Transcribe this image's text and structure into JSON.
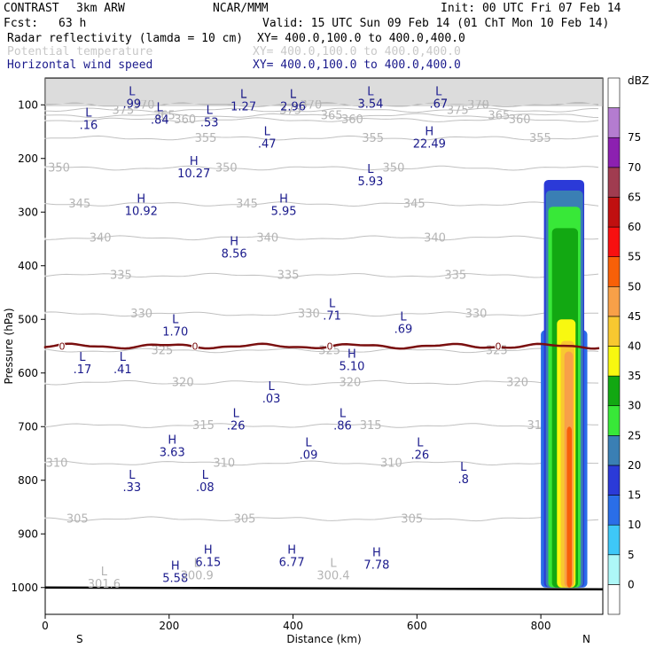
{
  "header": {
    "model": "CONTRAST",
    "model_res": "3km ARW",
    "org": "NCAR/MMM",
    "init": "Init: 00 UTC Fri 07 Feb 14",
    "fcst_label": "Fcst:",
    "fcst_value": "63 h",
    "valid": "Valid: 15 UTC Sun 09 Feb 14 (01 ChT Mon 10 Feb 14)",
    "fields": [
      {
        "name": "Radar reflectivity (lamda = 10 cm)",
        "xy": "XY= 400.0,100.0 to 400.0,400.0",
        "color": "#000000"
      },
      {
        "name": "Potential temperature",
        "xy": "XY= 400.0,100.0 to 400.0,400.0",
        "color": "#c8c8c8"
      },
      {
        "name": "Horizontal wind speed",
        "xy": "XY= 400.0,100.0 to 400.0,400.0",
        "color": "#1a1a8c"
      }
    ]
  },
  "chart_data": {
    "type": "heatmap",
    "xlabel": "Distance (km)",
    "ylabel": "Pressure (hPa)",
    "xlim": [
      0,
      900
    ],
    "ylim": [
      1050,
      50
    ],
    "x_ticks": [
      0,
      200,
      400,
      600,
      800
    ],
    "y_ticks": [
      100,
      200,
      300,
      400,
      500,
      600,
      700,
      800,
      900,
      1000
    ],
    "x_end_labels": {
      "left": "S",
      "right": "N"
    },
    "colorbar": {
      "unit": "dBZ",
      "levels": [
        0,
        5,
        10,
        15,
        20,
        25,
        30,
        35,
        40,
        45,
        50,
        55,
        60,
        65,
        70,
        75
      ],
      "colors": [
        "#ffffff",
        "#aef8f8",
        "#3ec8f8",
        "#2a6ee8",
        "#2b3ad8",
        "#3a7fb4",
        "#38e838",
        "#12a812",
        "#f8f810",
        "#f8c830",
        "#f8a048",
        "#f86008",
        "#f81010",
        "#c01010",
        "#a03c50",
        "#8c20b0",
        "#b47cd0",
        "#ffffff"
      ]
    },
    "theta_contours": [
      {
        "label": "375",
        "p": 110
      },
      {
        "label": "370",
        "p": 100
      },
      {
        "label": "365",
        "p": 120
      },
      {
        "label": "360",
        "p": 128
      },
      {
        "label": "355",
        "p": 162
      },
      {
        "label": "350",
        "p": 218
      },
      {
        "label": "345",
        "p": 285
      },
      {
        "label": "340",
        "p": 348
      },
      {
        "label": "335",
        "p": 418
      },
      {
        "label": "330",
        "p": 490
      },
      {
        "label": "325",
        "p": 558
      },
      {
        "label": "320",
        "p": 618
      },
      {
        "label": "315",
        "p": 698
      },
      {
        "label": "310",
        "p": 768
      },
      {
        "label": "305",
        "p": 872
      }
    ],
    "zero_isotherm_p": 550,
    "zero_label": "0",
    "wind_extrema": [
      {
        "t": "L",
        "v": ".99",
        "x": 140,
        "p": 105
      },
      {
        "t": "L",
        "v": ".16",
        "x": 70,
        "p": 145
      },
      {
        "t": "L",
        "v": ".84",
        "x": 185,
        "p": 135
      },
      {
        "t": "L",
        "v": ".53",
        "x": 265,
        "p": 140
      },
      {
        "t": "L",
        "v": "1.27",
        "x": 320,
        "p": 110
      },
      {
        "t": "L",
        "v": "2.96",
        "x": 400,
        "p": 110
      },
      {
        "t": "L",
        "v": "3.54",
        "x": 525,
        "p": 105
      },
      {
        "t": "L",
        "v": ".67",
        "x": 635,
        "p": 105
      },
      {
        "t": "H",
        "v": "22.49",
        "x": 620,
        "p": 180
      },
      {
        "t": "L",
        "v": ".47",
        "x": 358,
        "p": 180
      },
      {
        "t": "H",
        "v": "10.27",
        "x": 240,
        "p": 235
      },
      {
        "t": "L",
        "v": "5.93",
        "x": 525,
        "p": 250
      },
      {
        "t": "H",
        "v": "10.92",
        "x": 155,
        "p": 305
      },
      {
        "t": "H",
        "v": "5.95",
        "x": 385,
        "p": 305
      },
      {
        "t": "H",
        "v": "8.56",
        "x": 305,
        "p": 385
      },
      {
        "t": "L",
        "v": ".71",
        "x": 463,
        "p": 500
      },
      {
        "t": "L",
        "v": ".69",
        "x": 578,
        "p": 525
      },
      {
        "t": "L",
        "v": "1.70",
        "x": 210,
        "p": 530
      },
      {
        "t": "L",
        "v": ".17",
        "x": 60,
        "p": 600
      },
      {
        "t": "L",
        "v": ".41",
        "x": 125,
        "p": 600
      },
      {
        "t": "H",
        "v": "5.10",
        "x": 495,
        "p": 595
      },
      {
        "t": "L",
        "v": ".03",
        "x": 365,
        "p": 655
      },
      {
        "t": "L",
        "v": ".26",
        "x": 308,
        "p": 705
      },
      {
        "t": "L",
        "v": ".86",
        "x": 480,
        "p": 705
      },
      {
        "t": "H",
        "v": "3.63",
        "x": 205,
        "p": 755
      },
      {
        "t": "L",
        "v": ".09",
        "x": 425,
        "p": 760
      },
      {
        "t": "L",
        "v": ".26",
        "x": 605,
        "p": 760
      },
      {
        "t": "L",
        "v": ".8",
        "x": 675,
        "p": 805
      },
      {
        "t": "L",
        "v": ".33",
        "x": 140,
        "p": 820
      },
      {
        "t": "L",
        "v": ".08",
        "x": 258,
        "p": 820
      },
      {
        "t": "H",
        "v": "6.15",
        "x": 263,
        "p": 960
      },
      {
        "t": "H",
        "v": "6.77",
        "x": 398,
        "p": 960
      },
      {
        "t": "H",
        "v": "7.78",
        "x": 535,
        "p": 965
      },
      {
        "t": "H",
        "v": "5.58",
        "x": 210,
        "p": 990
      }
    ],
    "theta_extrema": [
      {
        "t": "L",
        "v": "301.6",
        "x": 95,
        "p": 1000
      },
      {
        "t": "L",
        "v": "300.9",
        "x": 245,
        "p": 985
      },
      {
        "t": "L",
        "v": "300.4",
        "x": 465,
        "p": 985
      }
    ]
  }
}
